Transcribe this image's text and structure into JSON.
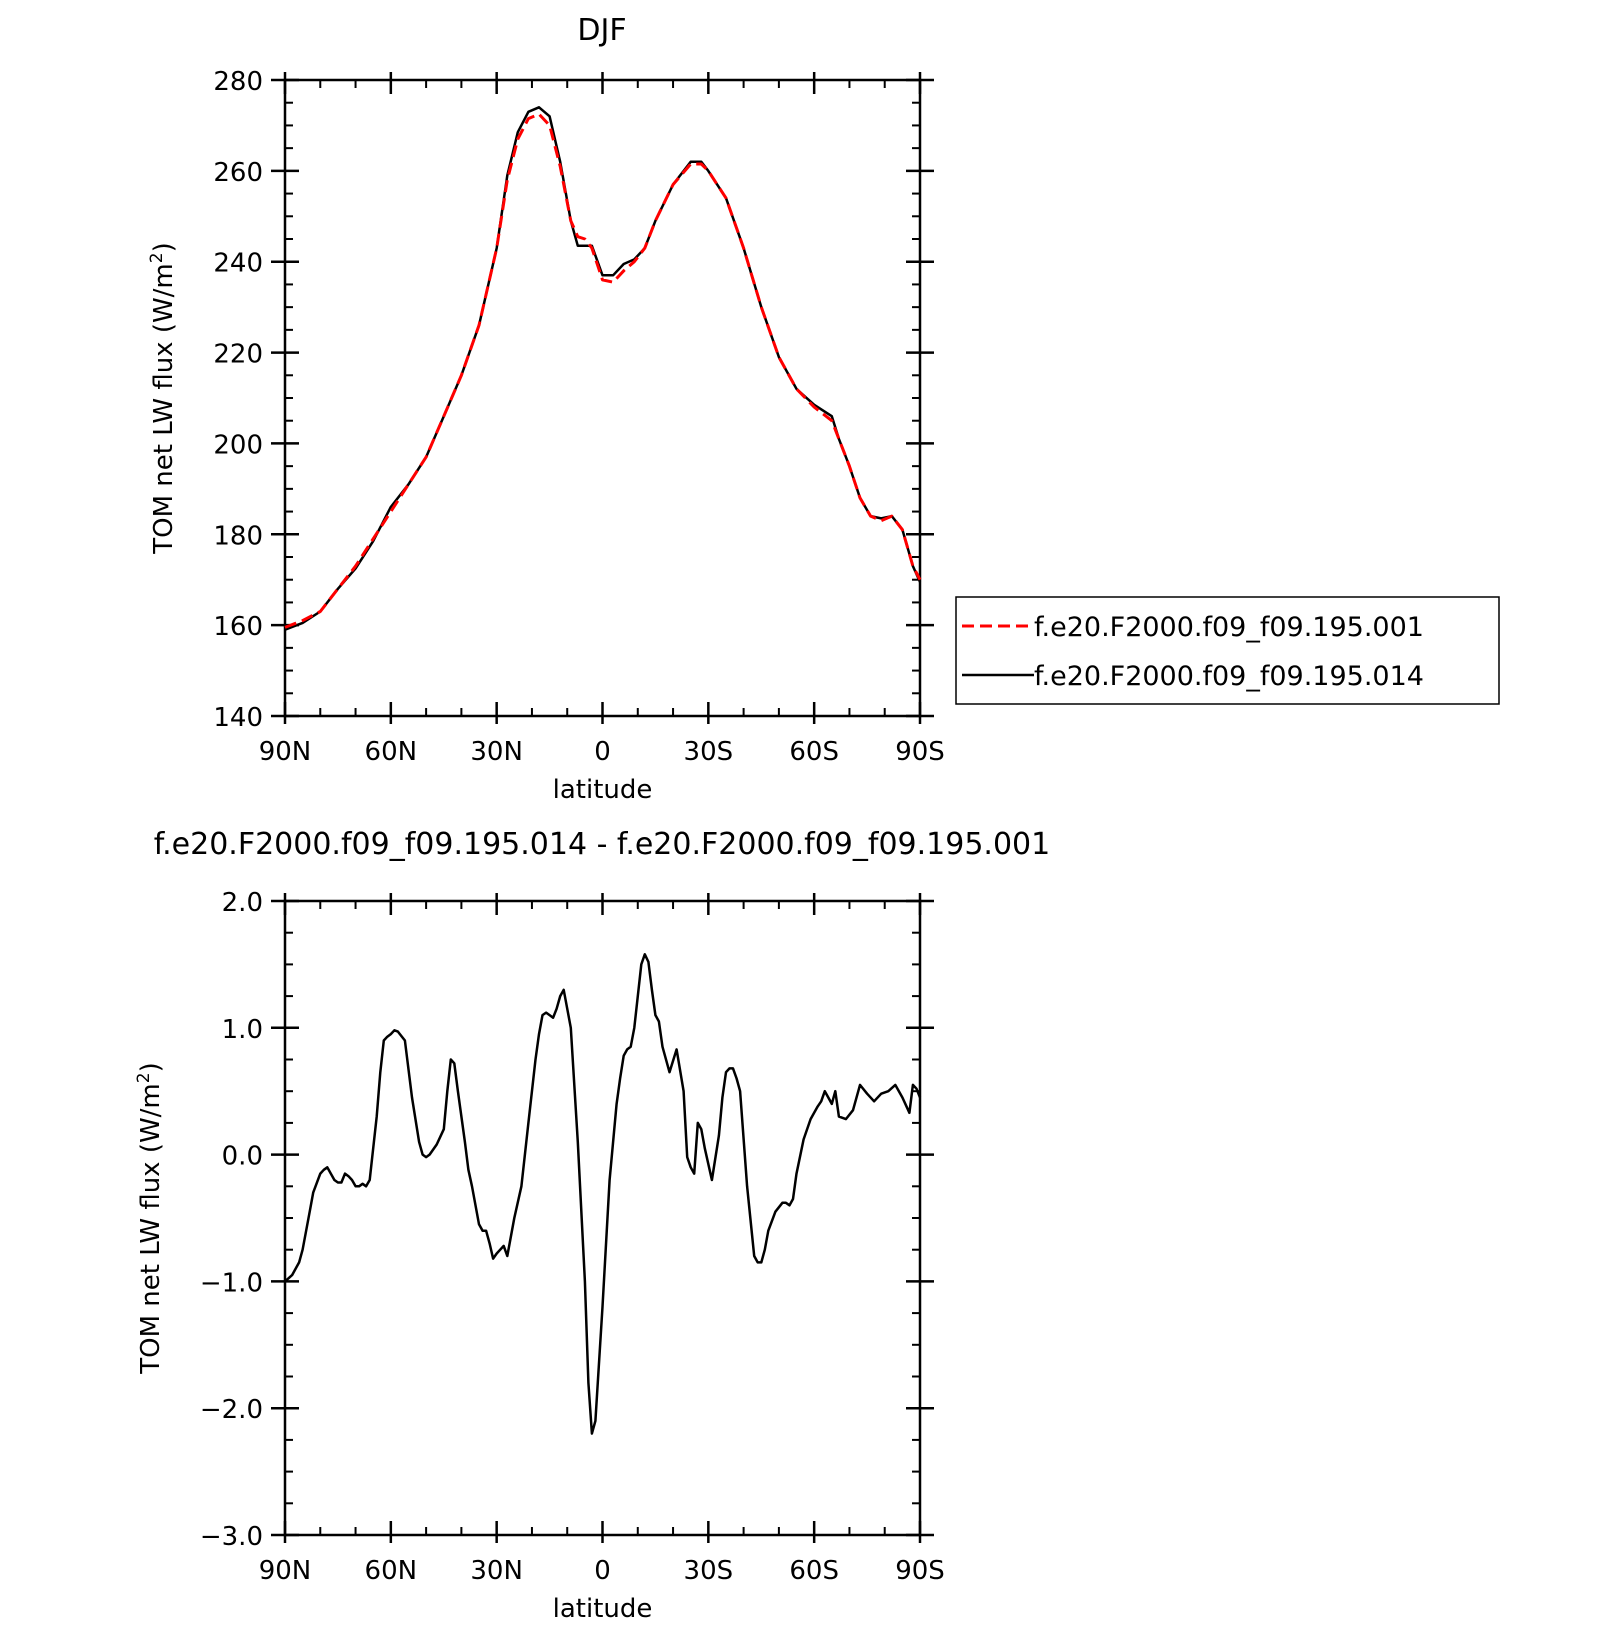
{
  "chart_data": [
    {
      "type": "line",
      "title": "DJF",
      "xlabel": "latitude",
      "ylabel_main": "TOM net LW flux (W/m",
      "ylabel_sup": "2",
      "ylabel_close": ")",
      "xlim": [
        90,
        -90
      ],
      "ylim": [
        140,
        280
      ],
      "x_ticks": [
        90,
        60,
        30,
        0,
        -30,
        -60,
        -90
      ],
      "x_tick_labels": [
        "90N",
        "60N",
        "30N",
        "0",
        "30S",
        "60S",
        "90S"
      ],
      "y_ticks": [
        140,
        160,
        180,
        200,
        220,
        240,
        260,
        280
      ],
      "y_tick_labels": [
        "140",
        "160",
        "180",
        "200",
        "220",
        "240",
        "260",
        "280"
      ],
      "legend_position": "right",
      "series": [
        {
          "name": "f.e20.F2000.f09_f09.195.001",
          "color": "#ff0000",
          "style": "dashed",
          "x": [
            90,
            85,
            80,
            75,
            70,
            65,
            60,
            55,
            50,
            45,
            40,
            35,
            30,
            27,
            24,
            21,
            18,
            15,
            12,
            9,
            7,
            5,
            3,
            0,
            -3,
            -6,
            -9,
            -12,
            -15,
            -20,
            -25,
            -28,
            -30,
            -35,
            -40,
            -45,
            -50,
            -55,
            -60,
            -65,
            -67,
            -70,
            -73,
            -76,
            -79,
            -82,
            -85,
            -88,
            -90
          ],
          "y": [
            159.5,
            161,
            163,
            168,
            173,
            179,
            185,
            191,
            197,
            206,
            215,
            226,
            243,
            258,
            267,
            271.5,
            272.5,
            270,
            261,
            249,
            245.5,
            245,
            243,
            236,
            235.5,
            238,
            240,
            243,
            249,
            257,
            261.5,
            261.5,
            260,
            254,
            243,
            230,
            219,
            212,
            208,
            205,
            201,
            195,
            188,
            184,
            183,
            184,
            181,
            173,
            170
          ]
        },
        {
          "name": "f.e20.F2000.f09_f09.195.014",
          "color": "#000000",
          "style": "solid",
          "x": [
            90,
            85,
            80,
            75,
            70,
            65,
            60,
            55,
            50,
            45,
            40,
            35,
            30,
            27,
            24,
            21,
            18,
            15,
            12,
            9,
            7,
            5,
            3,
            0,
            -3,
            -6,
            -9,
            -12,
            -15,
            -20,
            -25,
            -28,
            -30,
            -35,
            -40,
            -45,
            -50,
            -55,
            -60,
            -65,
            -67,
            -70,
            -73,
            -76,
            -79,
            -82,
            -85,
            -88,
            -90
          ],
          "y": [
            159,
            160.5,
            163,
            168,
            172.5,
            178.5,
            186,
            191,
            197,
            206,
            215,
            226,
            243,
            259,
            268.5,
            273,
            274,
            272,
            262,
            249,
            243.5,
            243.5,
            243.5,
            237,
            237,
            239.5,
            240.5,
            243,
            249,
            257,
            262,
            262,
            260,
            254,
            243,
            230,
            219,
            212,
            208.5,
            206,
            201,
            195,
            188,
            184,
            183.5,
            184,
            181,
            173,
            169.5
          ]
        }
      ]
    },
    {
      "type": "line",
      "title": "f.e20.F2000.f09_f09.195.014 - f.e20.F2000.f09_f09.195.001",
      "xlabel": "latitude",
      "ylabel_main": "TOM net LW flux (W/m",
      "ylabel_sup": "2",
      "ylabel_close": ")",
      "xlim": [
        90,
        -90
      ],
      "ylim": [
        -3,
        2
      ],
      "x_ticks": [
        90,
        60,
        30,
        0,
        -30,
        -60,
        -90
      ],
      "x_tick_labels": [
        "90N",
        "60N",
        "30N",
        "0",
        "30S",
        "60S",
        "90S"
      ],
      "y_ticks": [
        2,
        1,
        0,
        -1,
        -2,
        -3
      ],
      "y_tick_labels": [
        "2.0",
        "1.0",
        "0.0",
        "−1.0",
        "−2.0",
        "−3.0"
      ],
      "series": [
        {
          "color": "#000000",
          "style": "solid",
          "x": [
            90,
            88,
            86,
            85,
            83,
            82,
            80,
            79,
            78,
            76,
            75,
            74,
            73,
            72,
            71,
            70,
            69,
            68,
            67,
            66,
            65,
            64,
            63,
            62,
            61,
            60,
            59,
            58,
            56,
            54,
            52,
            51,
            50,
            49,
            47,
            45,
            44,
            43,
            42,
            41,
            40,
            39,
            38,
            37,
            36,
            35,
            34,
            33,
            32,
            31,
            30,
            29,
            28,
            27,
            25,
            23,
            21,
            19,
            18,
            17,
            16,
            15,
            14,
            13,
            12,
            11,
            9,
            7,
            5,
            4,
            3,
            2,
            0,
            -2,
            -4,
            -5,
            -6,
            -7,
            -8,
            -9,
            -10,
            -11,
            -12,
            -13,
            -14,
            -15,
            -16,
            -17,
            -19,
            -21,
            -23,
            -24,
            -25,
            -26,
            -27,
            -28,
            -29,
            -31,
            -33,
            -34,
            -35,
            -36,
            -37,
            -38,
            -39,
            -41,
            -43,
            -44,
            -45,
            -46,
            -47,
            -49,
            -51,
            -52,
            -53,
            -54,
            -55,
            -57,
            -59,
            -61,
            -62,
            -63,
            -64,
            -65,
            -66,
            -67,
            -69,
            -71,
            -73,
            -75,
            -77,
            -79,
            -81,
            -83,
            -85,
            -87,
            -88,
            -89,
            -90
          ],
          "y": [
            -1.0,
            -0.95,
            -0.85,
            -0.75,
            -0.45,
            -0.3,
            -0.15,
            -0.12,
            -0.1,
            -0.2,
            -0.22,
            -0.22,
            -0.15,
            -0.17,
            -0.2,
            -0.25,
            -0.25,
            -0.23,
            -0.25,
            -0.2,
            0.05,
            0.3,
            0.65,
            0.9,
            0.93,
            0.95,
            0.98,
            0.97,
            0.9,
            0.45,
            0.1,
            0.0,
            -0.02,
            0.0,
            0.08,
            0.2,
            0.5,
            0.75,
            0.72,
            0.5,
            0.3,
            0.1,
            -0.12,
            -0.25,
            -0.4,
            -0.55,
            -0.6,
            -0.6,
            -0.7,
            -0.82,
            -0.78,
            -0.75,
            -0.72,
            -0.8,
            -0.5,
            -0.25,
            0.25,
            0.75,
            0.95,
            1.1,
            1.12,
            1.1,
            1.08,
            1.15,
            1.25,
            1.3,
            1.0,
            0.1,
            -1.0,
            -1.8,
            -2.2,
            -2.1,
            -1.2,
            -0.2,
            0.4,
            0.6,
            0.78,
            0.83,
            0.85,
            1.0,
            1.25,
            1.5,
            1.58,
            1.52,
            1.3,
            1.1,
            1.05,
            0.85,
            0.65,
            0.83,
            0.5,
            -0.02,
            -0.1,
            -0.15,
            0.25,
            0.2,
            0.05,
            -0.2,
            0.15,
            0.45,
            0.65,
            0.68,
            0.68,
            0.6,
            0.5,
            -0.25,
            -0.8,
            -0.85,
            -0.85,
            -0.75,
            -0.6,
            -0.45,
            -0.38,
            -0.38,
            -0.4,
            -0.35,
            -0.15,
            0.12,
            0.28,
            0.38,
            0.42,
            0.5,
            0.45,
            0.4,
            0.5,
            0.3,
            0.28,
            0.35,
            0.55,
            0.48,
            0.42,
            0.48,
            0.5,
            0.55,
            0.45,
            0.33,
            0.55,
            0.52,
            0.45
          ]
        }
      ]
    }
  ]
}
